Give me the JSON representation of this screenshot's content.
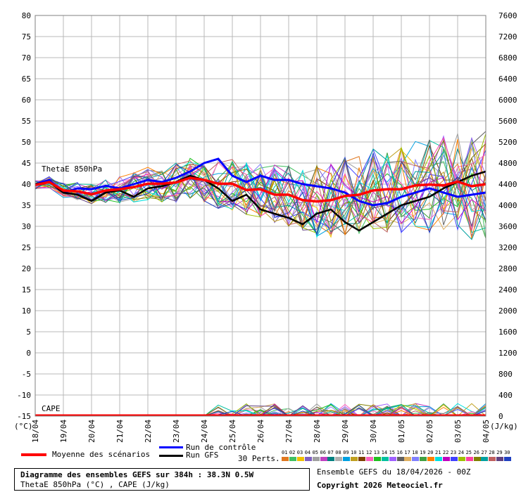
{
  "chart_data": {
    "type": "line",
    "title": "Diagramme des ensembles GEFS sur 384h : 38.3N 0.5W",
    "subtitle": "ThetaE 850hPa (°C) , CAPE (J/kg)",
    "y_left_ticks": [
      "80",
      "75",
      "70",
      "65",
      "60",
      "55",
      "50",
      "45",
      "40",
      "35",
      "30",
      "25",
      "20",
      "15",
      "10",
      "5",
      "0",
      "-5",
      "-10",
      "-15"
    ],
    "y_right_ticks": [
      "7600",
      "7200",
      "6800",
      "6400",
      "6000",
      "5600",
      "5200",
      "4800",
      "4400",
      "4000",
      "3600",
      "3200",
      "2800",
      "2400",
      "2000",
      "1600",
      "1200",
      "800",
      "400",
      "0"
    ],
    "y_left_unit": "(°C)",
    "y_right_unit": "(J/kg)",
    "ylim_left": [
      -15,
      80
    ],
    "x_tick_labels": [
      "18/04",
      "19/04",
      "20/04",
      "21/04",
      "22/04",
      "23/04",
      "24/04",
      "25/04",
      "26/04",
      "27/04",
      "28/04",
      "29/04",
      "30/04",
      "01/05",
      "02/05",
      "03/05",
      "04/05"
    ],
    "annotations": {
      "thetae": "ThetaE 850hPa",
      "cape": "CAPE"
    },
    "series": [
      {
        "name": "Moyenne des scénarios",
        "color": "#ff0000",
        "x": [
          0,
          0.5,
          1,
          1.5,
          2,
          2.5,
          3,
          3.5,
          4,
          4.5,
          5,
          5.5,
          6,
          6.5,
          7,
          7.5,
          8,
          8.5,
          9,
          9.5,
          10,
          10.5,
          11,
          11.5,
          12,
          12.5,
          13,
          13.5,
          14,
          14.5,
          15,
          15.5,
          16
        ],
        "values": [
          39.8,
          40.5,
          38.5,
          38.3,
          37.6,
          38.5,
          38.8,
          39.3,
          40.1,
          40.1,
          40.4,
          41.5,
          41,
          40.1,
          40.1,
          38.6,
          38.8,
          37.5,
          37.5,
          36.2,
          35.9,
          36.2,
          37.2,
          37.5,
          38.5,
          38.8,
          38.8,
          39.7,
          39.9,
          39.7,
          40.6,
          39.5,
          40
        ]
      },
      {
        "name": "Run de contrôle",
        "color": "#0000ff",
        "x": [
          0,
          0.5,
          1,
          1.5,
          2,
          2.5,
          3,
          3.5,
          4,
          4.5,
          5,
          5.5,
          6,
          6.5,
          7,
          7.5,
          8,
          8.5,
          9,
          9.5,
          10,
          10.5,
          11,
          11.5,
          12,
          12.5,
          13,
          13.5,
          14,
          14.5,
          15,
          15.5,
          16
        ],
        "values": [
          40,
          41,
          38,
          39,
          38.8,
          39.6,
          39,
          40,
          41,
          40.5,
          41.5,
          43,
          45,
          46,
          42,
          40.5,
          42,
          41,
          41,
          40,
          39.5,
          39,
          38,
          36,
          35,
          35.5,
          37,
          38,
          39,
          38,
          37,
          37.5,
          38
        ]
      },
      {
        "name": "Run GFS",
        "color": "#000000",
        "x": [
          0,
          0.5,
          1,
          1.5,
          2,
          2.5,
          3,
          3.5,
          4,
          4.5,
          5,
          5.5,
          6,
          6.5,
          7,
          7.5,
          8,
          8.5,
          9,
          9.5,
          10,
          10.5,
          11,
          11.5,
          12,
          12.5,
          13,
          13.5,
          14,
          14.5,
          15,
          15.5,
          16
        ],
        "values": [
          40,
          40.5,
          38,
          37.5,
          36,
          38,
          38.5,
          37,
          39,
          39.5,
          40.5,
          42,
          41,
          39,
          36,
          37.5,
          34,
          33,
          32,
          30.5,
          33,
          34,
          31,
          29,
          31,
          33,
          35,
          36,
          37,
          39,
          40.5,
          42,
          43
        ]
      }
    ]
  },
  "legend": {
    "mean": "Moyenne des scénarios",
    "control": "Run de contrôle",
    "gfs": "Run GFS",
    "perts": "30 Perts."
  },
  "member_numbers": [
    "01",
    "02",
    "03",
    "04",
    "05",
    "06",
    "07",
    "08",
    "09",
    "10",
    "11",
    "12",
    "13",
    "14",
    "15",
    "16",
    "17",
    "18",
    "19",
    "20",
    "21",
    "22",
    "23",
    "24",
    "25",
    "26",
    "27",
    "28",
    "29",
    "30"
  ],
  "member_colors": [
    "#e07820",
    "#40c060",
    "#f0c000",
    "#8060c0",
    "#a0a0a0",
    "#c040c0",
    "#008080",
    "#b0b0b0",
    "#00a0e0",
    "#c0a020",
    "#804000",
    "#ff60c0",
    "#20c020",
    "#00c0a0",
    "#a060ff",
    "#606060",
    "#e0b060",
    "#8080ff",
    "#40a040",
    "#ff8000",
    "#00e0e0",
    "#c000c0",
    "#4040ff",
    "#a0c000",
    "#ff40a0",
    "#808000",
    "#00a0a0",
    "#c06060",
    "#604080",
    "#2040c0"
  ],
  "footer": {
    "line1": "Diagramme des ensembles GEFS sur 384h : 38.3N 0.5W",
    "line2": "ThetaE 850hPa (°C) , CAPE (J/kg)",
    "ensemble": "Ensemble GEFS du 18/04/2026 - 00Z",
    "copyright": "Copyright 2026 Meteociel.fr"
  }
}
